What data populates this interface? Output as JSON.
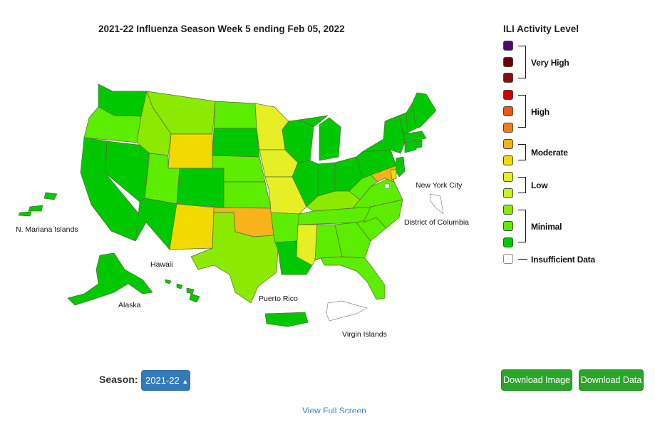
{
  "title": "2021-22 Influenza Season Week 5 ending Feb 05, 2022",
  "legend": {
    "title": "ILI Activity Level",
    "groups": {
      "very_high": "Very High",
      "high": "High",
      "moderate": "Moderate",
      "low": "Low",
      "minimal": "Minimal",
      "insufficient": "Insufficient Data"
    },
    "colors": [
      "#4b0a73",
      "#6b0000",
      "#8b0b0b",
      "#cc0000",
      "#f5540c",
      "#f57c13",
      "#f7b21c",
      "#f2da00",
      "#e5ef23",
      "#c8f223",
      "#8bea00",
      "#5ced00",
      "#00c800",
      "#ffffff"
    ]
  },
  "territories": {
    "mariana": "N. Mariana Islands",
    "hawaii": "Hawaii",
    "alaska": "Alaska",
    "puerto_rico": "Puerto Rico",
    "virgin_islands": "Virgin Islands",
    "nyc": "New York City",
    "dc": "District of Columbia"
  },
  "season": {
    "label": "Season:",
    "value": "2021-22"
  },
  "buttons": {
    "download_image": "Download Image",
    "download_data": "Download Data"
  },
  "view_full_screen": "View Full Screen",
  "states": {
    "WA": "minimal-3",
    "OR": "minimal-2",
    "CA": "minimal-3",
    "NV": "minimal-3",
    "ID": "minimal-1",
    "MT": "minimal-1",
    "WY": "moderate-2",
    "UT": "minimal-2",
    "AZ": "minimal-3",
    "CO": "minimal-3",
    "NM": "moderate-2",
    "ND": "minimal-2",
    "SD": "minimal-3",
    "NE": "minimal-2",
    "KS": "minimal-2",
    "OK": "moderate-1",
    "TX": "minimal-1",
    "MN": "low-1",
    "IA": "low-1",
    "MO": "low-1",
    "AR": "minimal-2",
    "LA": "minimal-3",
    "WI": "minimal-3",
    "IL": "minimal-3",
    "MI": "minimal-3",
    "IN": "minimal-3",
    "OH": "minimal-3",
    "KY": "minimal-1",
    "TN": "minimal-2",
    "MS": "low-1",
    "AL": "minimal-2",
    "GA": "minimal-2",
    "FL": "minimal-2",
    "SC": "minimal-2",
    "NC": "minimal-2",
    "VA": "minimal-2",
    "WV": "minimal-2",
    "PA": "minimal-3",
    "NY": "minimal-3",
    "NJ": "minimal-3",
    "MD": "moderate-1",
    "DE": "moderate-2",
    "CT": "minimal-3",
    "RI": "minimal-3",
    "MA": "minimal-3",
    "VT": "minimal-3",
    "NH": "minimal-3",
    "ME": "minimal-3",
    "AK": "minimal-3",
    "HI": "minimal-3",
    "PR": "minimal-3",
    "MP": "minimal-3",
    "VI": "insufficient",
    "NYC": "insufficient",
    "DC": "insufficient"
  }
}
